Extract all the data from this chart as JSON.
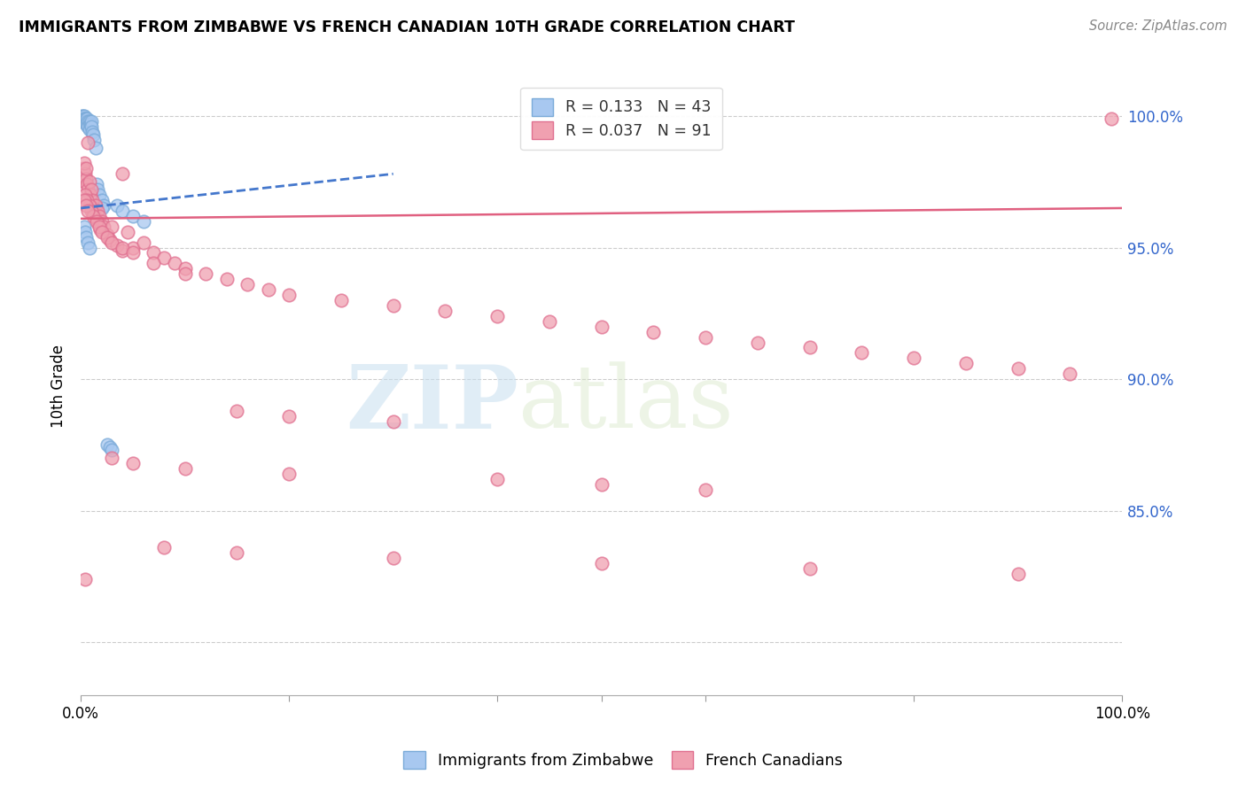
{
  "title": "IMMIGRANTS FROM ZIMBABWE VS FRENCH CANADIAN 10TH GRADE CORRELATION CHART",
  "source": "Source: ZipAtlas.com",
  "ylabel": "10th Grade",
  "blue_R": 0.133,
  "blue_N": 43,
  "pink_R": 0.037,
  "pink_N": 91,
  "blue_color": "#a8c8f0",
  "pink_color": "#f0a0b0",
  "blue_edge_color": "#7aaad8",
  "pink_edge_color": "#e07090",
  "blue_trend_color": "#4477cc",
  "pink_trend_color": "#e06080",
  "legend_label_blue": "Immigrants from Zimbabwe",
  "legend_label_pink": "French Canadians",
  "watermark_zip": "ZIP",
  "watermark_atlas": "atlas",
  "xlim": [
    0.0,
    1.0
  ],
  "ylim": [
    0.78,
    1.015
  ],
  "ytick_vals": [
    0.8,
    0.85,
    0.9,
    0.95,
    1.0
  ],
  "ytick_labels": [
    "",
    "85.0%",
    "90.0%",
    "95.0%",
    "100.0%"
  ],
  "blue_scatter_x": [
    0.001,
    0.001,
    0.002,
    0.002,
    0.003,
    0.003,
    0.003,
    0.004,
    0.004,
    0.005,
    0.005,
    0.005,
    0.006,
    0.006,
    0.007,
    0.007,
    0.008,
    0.008,
    0.009,
    0.01,
    0.01,
    0.011,
    0.012,
    0.013,
    0.014,
    0.015,
    0.016,
    0.018,
    0.02,
    0.022,
    0.025,
    0.028,
    0.03,
    0.035,
    0.04,
    0.05,
    0.06,
    0.003,
    0.004,
    0.005,
    0.007,
    0.008,
    0.02
  ],
  "blue_scatter_y": [
    1.0,
    0.999,
    1.0,
    0.999,
    1.0,
    0.999,
    0.998,
    0.999,
    0.998,
    0.999,
    0.998,
    0.997,
    0.999,
    0.997,
    0.998,
    0.996,
    0.998,
    0.995,
    0.997,
    0.998,
    0.996,
    0.994,
    0.993,
    0.991,
    0.988,
    0.974,
    0.972,
    0.97,
    0.968,
    0.966,
    0.875,
    0.874,
    0.873,
    0.966,
    0.964,
    0.962,
    0.96,
    0.958,
    0.956,
    0.954,
    0.952,
    0.95,
    0.965
  ],
  "pink_scatter_x": [
    0.002,
    0.003,
    0.004,
    0.005,
    0.006,
    0.007,
    0.008,
    0.009,
    0.01,
    0.011,
    0.012,
    0.013,
    0.014,
    0.015,
    0.016,
    0.017,
    0.018,
    0.019,
    0.02,
    0.022,
    0.025,
    0.028,
    0.03,
    0.035,
    0.04,
    0.045,
    0.05,
    0.06,
    0.07,
    0.08,
    0.09,
    0.1,
    0.12,
    0.14,
    0.16,
    0.18,
    0.2,
    0.25,
    0.3,
    0.35,
    0.4,
    0.45,
    0.5,
    0.55,
    0.6,
    0.65,
    0.7,
    0.75,
    0.8,
    0.85,
    0.9,
    0.95,
    0.99,
    0.004,
    0.006,
    0.008,
    0.01,
    0.012,
    0.015,
    0.018,
    0.02,
    0.025,
    0.03,
    0.04,
    0.05,
    0.07,
    0.1,
    0.15,
    0.2,
    0.3,
    0.003,
    0.005,
    0.007,
    0.03,
    0.05,
    0.1,
    0.2,
    0.4,
    0.5,
    0.6,
    0.003,
    0.005,
    0.04,
    0.08,
    0.15,
    0.3,
    0.5,
    0.7,
    0.9,
    0.004,
    0.007
  ],
  "pink_scatter_y": [
    0.98,
    0.975,
    0.978,
    0.976,
    0.974,
    0.972,
    0.975,
    0.97,
    0.972,
    0.968,
    0.965,
    0.963,
    0.966,
    0.961,
    0.964,
    0.959,
    0.962,
    0.957,
    0.96,
    0.958,
    0.955,
    0.953,
    0.958,
    0.951,
    0.949,
    0.956,
    0.95,
    0.952,
    0.948,
    0.946,
    0.944,
    0.942,
    0.94,
    0.938,
    0.936,
    0.934,
    0.932,
    0.93,
    0.928,
    0.926,
    0.924,
    0.922,
    0.92,
    0.918,
    0.916,
    0.914,
    0.912,
    0.91,
    0.908,
    0.906,
    0.904,
    0.902,
    0.999,
    0.97,
    0.968,
    0.966,
    0.964,
    0.962,
    0.96,
    0.958,
    0.956,
    0.954,
    0.952,
    0.95,
    0.948,
    0.944,
    0.94,
    0.888,
    0.886,
    0.884,
    0.968,
    0.966,
    0.964,
    0.87,
    0.868,
    0.866,
    0.864,
    0.862,
    0.86,
    0.858,
    0.982,
    0.98,
    0.978,
    0.836,
    0.834,
    0.832,
    0.83,
    0.828,
    0.826,
    0.824,
    0.99
  ]
}
